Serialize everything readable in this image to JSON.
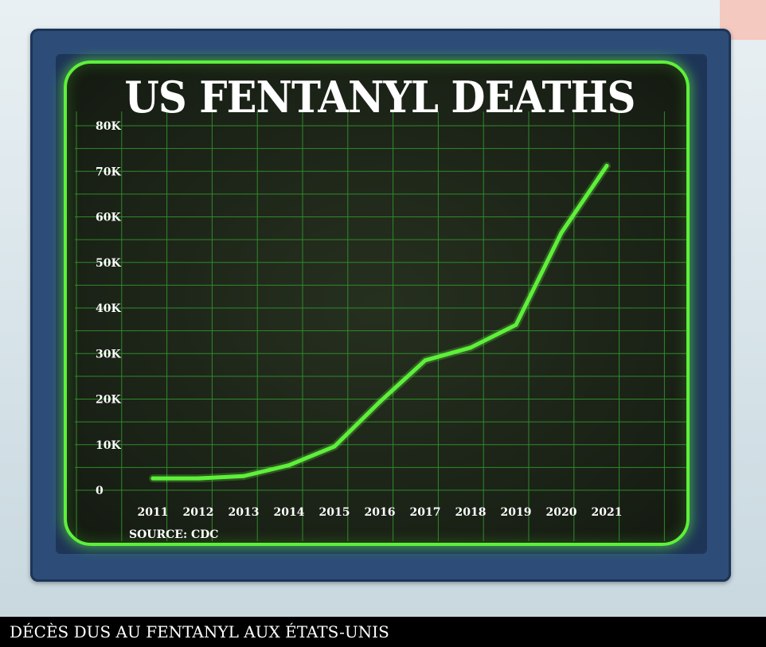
{
  "chart_data": {
    "type": "line",
    "title": "US FENTANYL DEATHS",
    "xlabel": "",
    "ylabel": "",
    "x": [
      "2011",
      "2012",
      "2013",
      "2014",
      "2015",
      "2016",
      "2017",
      "2018",
      "2019",
      "2020",
      "2021"
    ],
    "series": [
      {
        "values": [
          2600,
          2600,
          3100,
          5500,
          9600,
          19400,
          28500,
          31300,
          36300,
          56500,
          71200
        ]
      }
    ],
    "ylim": [
      0,
      80000
    ],
    "yticks": [
      0,
      10000,
      20000,
      30000,
      40000,
      50000,
      60000,
      70000,
      80000
    ],
    "ytick_labels": [
      "0",
      "10K",
      "20K",
      "30K",
      "40K",
      "50K",
      "60K",
      "70K",
      "80K"
    ],
    "grid": true,
    "source": "SOURCE: CDC",
    "line_color": "#5ef03a",
    "grid_color": "#2f8a2a"
  },
  "caption": "DÉCÈS DUS AU FENTANYL AUX ÉTATS-UNIS"
}
